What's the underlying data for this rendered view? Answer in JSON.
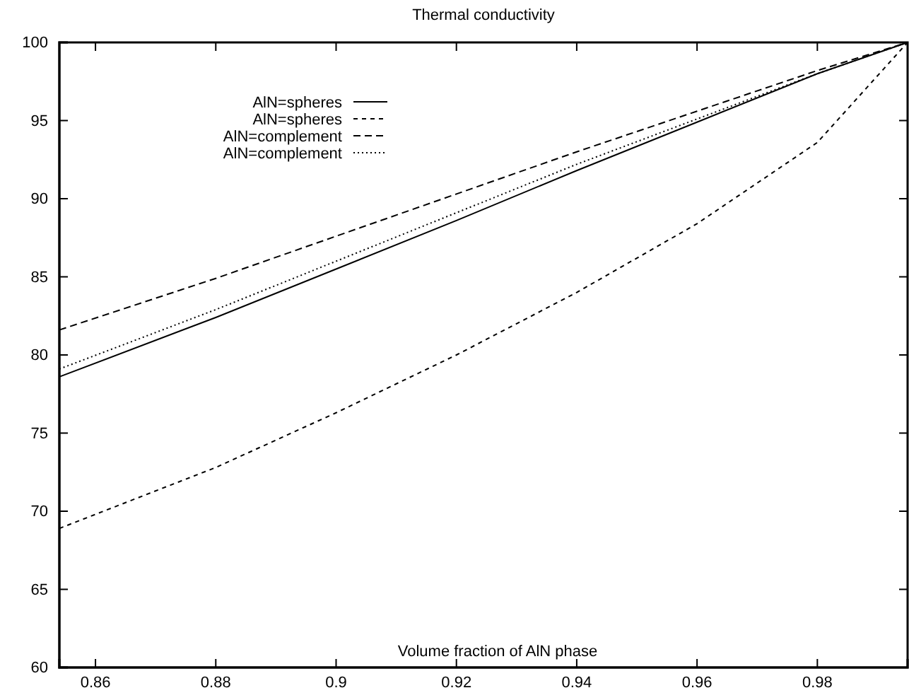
{
  "chart_data": {
    "type": "line",
    "title": "Thermal conductivity",
    "xlabel": "Volume fraction of AlN phase",
    "x": [
      0.854,
      0.88,
      0.9,
      0.92,
      0.94,
      0.96,
      0.98,
      0.995
    ],
    "xlim": [
      0.854,
      0.995
    ],
    "xticks": [
      0.86,
      0.88,
      0.9,
      0.92,
      0.94,
      0.96,
      0.98
    ],
    "ylim": [
      60,
      100
    ],
    "yticks": [
      60,
      65,
      70,
      75,
      80,
      85,
      90,
      95,
      100
    ],
    "grid": false,
    "legend": "top left",
    "marker": "none",
    "series": [
      {
        "name": "AlN=spheres",
        "color": "#000000",
        "line_style": "solid",
        "values": [
          78.6,
          82.4,
          85.5,
          88.6,
          91.8,
          94.9,
          98.0,
          100
        ]
      },
      {
        "name": "AlN=spheres",
        "color": "#000000",
        "line_style": "dashed",
        "values": [
          68.9,
          72.8,
          76.3,
          80.0,
          84.0,
          88.4,
          93.6,
          100
        ]
      },
      {
        "name": "AlN=complement",
        "color": "#000000",
        "line_style": "dashed",
        "values": [
          81.6,
          84.9,
          87.6,
          90.3,
          93.0,
          95.6,
          98.2,
          100
        ]
      },
      {
        "name": "AlN=complement",
        "color": "#000000",
        "line_style": "dotted",
        "values": [
          79.1,
          82.9,
          86.0,
          89.1,
          92.2,
          95.1,
          98.0,
          100
        ]
      }
    ]
  }
}
